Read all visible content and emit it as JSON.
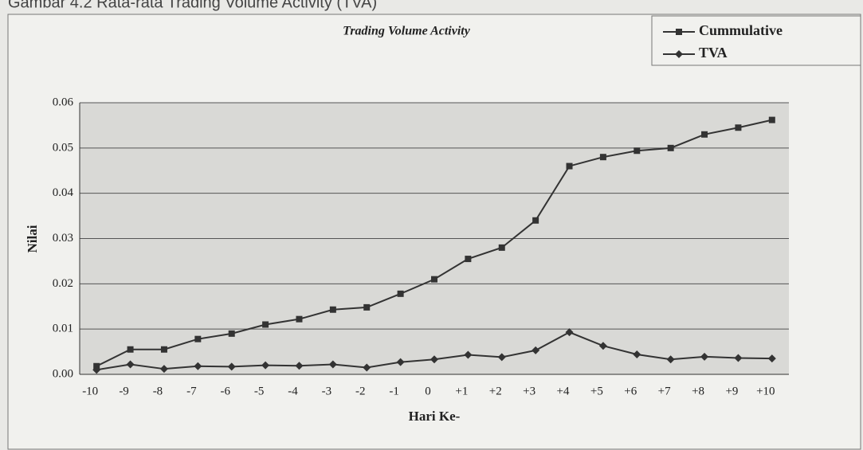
{
  "caption": "Gambar 4.2 Rata-rata Trading Volume Activity (TVA)",
  "chart_data": {
    "type": "line",
    "title": "Trading Volume Activity",
    "x_label": "Hari Ke-",
    "y_label": "Nilai",
    "categories": [
      "-10",
      "-9",
      "-8",
      "-7",
      "-6",
      "-5",
      "-4",
      "-3",
      "-2",
      "-1",
      "0",
      "+1",
      "+2",
      "+3",
      "+4",
      "+5",
      "+6",
      "+7",
      "+8",
      "+9",
      "+10"
    ],
    "series": [
      {
        "name": "Cummulative",
        "color": "#333333",
        "marker": "square",
        "values": [
          0.0018,
          0.0055,
          0.0055,
          0.0078,
          0.009,
          0.011,
          0.0122,
          0.0143,
          0.0148,
          0.0178,
          0.021,
          0.0255,
          0.028,
          0.034,
          0.046,
          0.048,
          0.0494,
          0.05,
          0.053,
          0.0545,
          0.0562
        ]
      },
      {
        "name": "TVA",
        "color": "#333333",
        "marker": "diamond",
        "values": [
          0.001,
          0.0022,
          0.0012,
          0.0018,
          0.0017,
          0.002,
          0.0019,
          0.0022,
          0.0015,
          0.0027,
          0.0033,
          0.0043,
          0.0038,
          0.0053,
          0.0093,
          0.0063,
          0.0044,
          0.0033,
          0.0039,
          0.0036,
          0.0035
        ]
      }
    ],
    "ylim": [
      0,
      0.06
    ],
    "yticks": [
      {
        "value": 0,
        "label": "0.00"
      },
      0.01,
      0.02,
      0.03,
      0.04,
      0.05,
      0.06
    ],
    "grid": true,
    "legend": "top-right"
  }
}
